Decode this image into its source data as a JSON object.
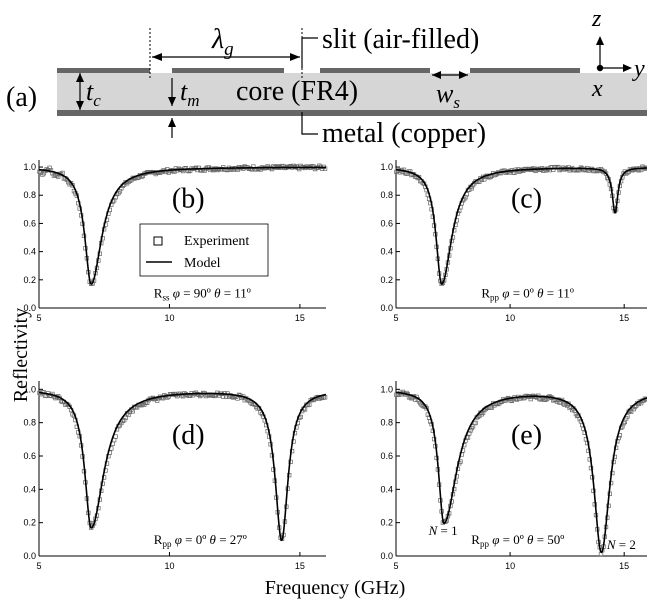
{
  "schematic": {
    "panel_label": "(a)",
    "lambda_label": "λ",
    "lambda_sub": "g",
    "slit_label": "slit (air-filled)",
    "core_label": "core (FR4)",
    "metal_label": "metal (copper)",
    "tc_main": "t",
    "tc_sub": "c",
    "tm_main": "t",
    "tm_sub": "m",
    "ws_main": "w",
    "ws_sub": "s",
    "axis_z": "z",
    "axis_x": "x",
    "axis_y": "y"
  },
  "ylabel": "Reflectivity",
  "xlabel": "Frequency (GHz)",
  "legend": {
    "experiment": "Experiment",
    "model": "Model"
  },
  "chart_data": [
    {
      "type": "line",
      "panel": "(b)",
      "xlim": [
        5,
        16
      ],
      "ylim": [
        0,
        1.05
      ],
      "x_ticks": [
        "5",
        "10",
        "15"
      ],
      "y_ticks": [
        "0.0",
        "0.2",
        "0.4",
        "0.6",
        "0.8",
        "1.0"
      ],
      "annotation": {
        "r": "R",
        "r_sub": "ss",
        "phi": "φ",
        "phi_val": " = 90º ",
        "theta": "θ",
        "theta_val": " = 11º"
      },
      "dips": [
        {
          "f": 7.0,
          "min": 0.17,
          "wl": 0.3,
          "wr": 0.5
        }
      ],
      "series": [
        {
          "name": "Experiment",
          "style": "markers"
        },
        {
          "name": "Model",
          "style": "line"
        }
      ]
    },
    {
      "type": "line",
      "panel": "(c)",
      "xlim": [
        5,
        16
      ],
      "ylim": [
        0,
        1.05
      ],
      "x_ticks": [
        "5",
        "10",
        "15"
      ],
      "y_ticks": [
        "0.0",
        "0.2",
        "0.4",
        "0.6",
        "0.8",
        "1.0"
      ],
      "annotation": {
        "r": "R",
        "r_sub": "pp",
        "phi": "φ",
        "phi_val": " = 0º ",
        "theta": "θ",
        "theta_val": " = 11º"
      },
      "dips": [
        {
          "f": 7.0,
          "min": 0.17,
          "wl": 0.3,
          "wr": 0.55
        },
        {
          "f": 14.6,
          "min": 0.68,
          "wl": 0.15,
          "wr": 0.15
        }
      ],
      "series": [
        {
          "name": "Experiment",
          "style": "markers"
        },
        {
          "name": "Model",
          "style": "line"
        }
      ]
    },
    {
      "type": "line",
      "panel": "(d)",
      "xlim": [
        5,
        16
      ],
      "ylim": [
        0,
        1.05
      ],
      "x_ticks": [
        "5",
        "10",
        "15"
      ],
      "y_ticks": [
        "0.0",
        "0.2",
        "0.4",
        "0.6",
        "0.8",
        "1.0"
      ],
      "annotation": {
        "r": "R",
        "r_sub": "pp",
        "phi": "φ",
        "phi_val": " = 0º ",
        "theta": "θ",
        "theta_val": " = 27º"
      },
      "dips": [
        {
          "f": 7.0,
          "min": 0.17,
          "wl": 0.3,
          "wr": 0.6
        },
        {
          "f": 14.3,
          "min": 0.1,
          "wl": 0.3,
          "wr": 0.3
        }
      ],
      "series": [
        {
          "name": "Experiment",
          "style": "markers"
        },
        {
          "name": "Model",
          "style": "line"
        }
      ]
    },
    {
      "type": "line",
      "panel": "(e)",
      "xlim": [
        5,
        16
      ],
      "ylim": [
        0,
        1.05
      ],
      "x_ticks": [
        "5",
        "10",
        "15"
      ],
      "y_ticks": [
        "0.0",
        "0.2",
        "0.4",
        "0.6",
        "0.8",
        "1.0"
      ],
      "annotation": {
        "r": "R",
        "r_sub": "pp",
        "phi": "φ",
        "phi_val": " = 0º ",
        "theta": "θ",
        "theta_val": " = 50º"
      },
      "mode_labels": [
        {
          "italic": "N",
          "rest": " = 1"
        },
        {
          "italic": "N",
          "rest": " = 2"
        }
      ],
      "dips": [
        {
          "f": 7.1,
          "min": 0.2,
          "wl": 0.3,
          "wr": 0.7
        },
        {
          "f": 14.0,
          "min": 0.03,
          "wl": 0.4,
          "wr": 0.45
        }
      ],
      "series": [
        {
          "name": "Experiment",
          "style": "markers"
        },
        {
          "name": "Model",
          "style": "line"
        }
      ]
    }
  ]
}
